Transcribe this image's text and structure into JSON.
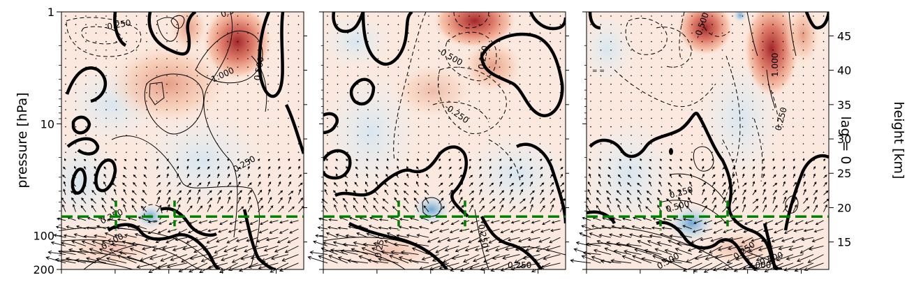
{
  "chart_data": {
    "type": "heatmap",
    "panels": [
      {
        "title": "",
        "contour_labels": [
          "0.250",
          "0.500",
          "1.000",
          "0.500",
          "0.250",
          "0.250",
          "0.500"
        ],
        "negative_contour_labels": [
          "-0.250"
        ]
      },
      {
        "title": "",
        "contour_labels": [
          "0.250",
          "0.250",
          "0.250",
          "0.250"
        ],
        "negative_contour_labels": [
          "-0.500",
          "-0.250"
        ]
      },
      {
        "title": "",
        "contour_labels": [
          "1.000",
          "0.250",
          "0.250",
          "0.500",
          "0.250",
          "0.500",
          "0.500",
          "1.000"
        ],
        "negative_contour_labels": [
          "-0.500"
        ]
      }
    ],
    "left_axis": {
      "label": "pressure [hPa]",
      "scale": "log",
      "range": [
        200,
        1
      ],
      "ticks": [
        {
          "value": 1,
          "label": "1"
        },
        {
          "value": 10,
          "label": "10"
        },
        {
          "value": 100,
          "label": "100"
        },
        {
          "value": 200,
          "label": "200"
        }
      ]
    },
    "right_axis": {
      "label": "height [km]",
      "range": [
        11,
        48.5
      ],
      "ticks": [
        {
          "value": 15,
          "label": "15"
        },
        {
          "value": 20,
          "label": "20"
        },
        {
          "value": 25,
          "label": "25"
        },
        {
          "value": 30,
          "label": "30"
        },
        {
          "value": 35,
          "label": "35"
        },
        {
          "value": 40,
          "label": "40"
        },
        {
          "value": 45,
          "label": "45"
        }
      ]
    },
    "row_label": "lag = 0",
    "reference_line_height_km": 18.7,
    "colors": {
      "positive": "#b2182b",
      "negative": "#2166ac",
      "reference_line": "#008000",
      "contour": "#000000"
    }
  }
}
